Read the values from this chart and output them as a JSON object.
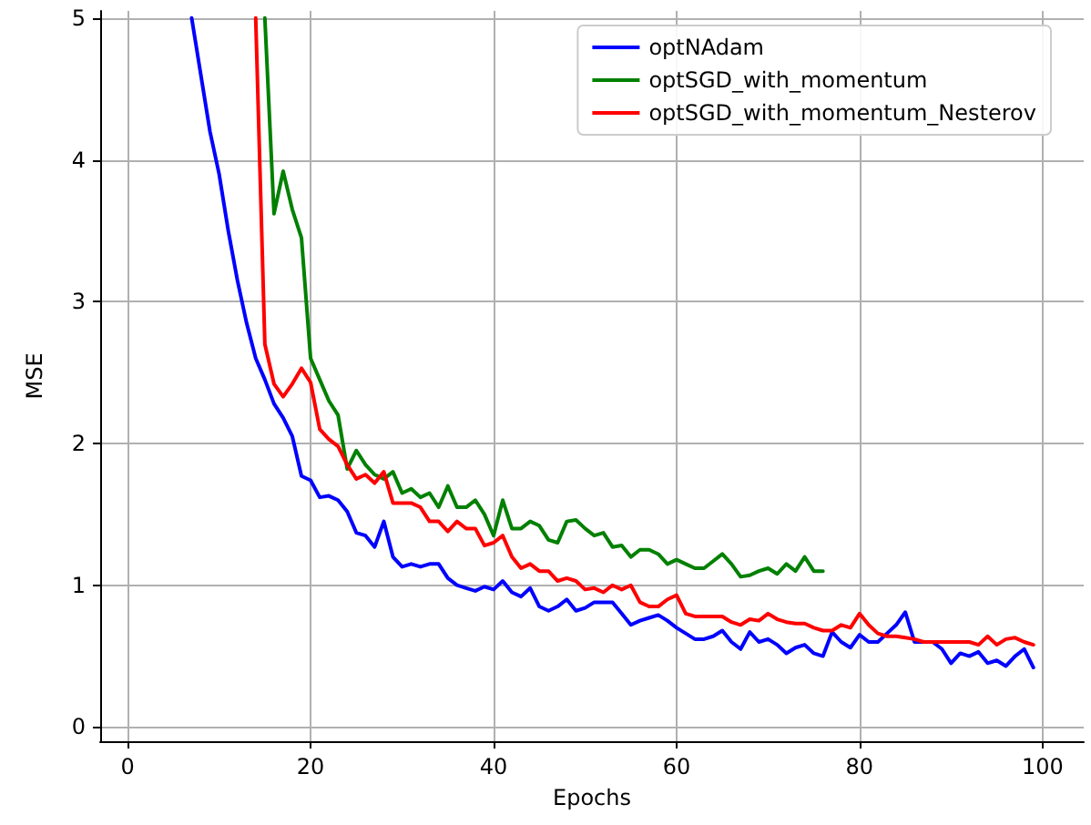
{
  "chart_data": {
    "type": "line",
    "xlabel": "Epochs",
    "ylabel": "MSE",
    "xlim": [
      -3,
      104.5
    ],
    "ylim": [
      -0.1,
      5.05
    ],
    "xticks": [
      0,
      20,
      40,
      60,
      80,
      100
    ],
    "yticks": [
      0,
      1,
      2,
      3,
      4,
      5
    ],
    "grid": true,
    "legend": "top right",
    "marker": "none",
    "line_style": "solid",
    "series": [
      {
        "name": "optNAdam",
        "color": "#0000ff",
        "x": [
          7,
          9,
          10,
          11,
          12,
          13,
          14,
          15,
          16,
          17,
          18,
          19,
          20,
          21,
          22,
          23,
          24,
          25,
          26,
          27,
          28,
          29,
          30,
          31,
          32,
          33,
          34,
          35,
          36,
          37,
          38,
          39,
          40,
          41,
          42,
          43,
          44,
          45,
          46,
          47,
          48,
          49,
          50,
          51,
          52,
          53,
          54,
          55,
          56,
          57,
          58,
          59,
          60,
          61,
          62,
          63,
          64,
          65,
          66,
          67,
          68,
          69,
          70,
          71,
          72,
          73,
          74,
          75,
          76,
          77,
          78,
          79,
          80,
          81,
          82,
          83,
          84,
          85,
          86,
          87,
          88,
          89,
          90,
          91,
          92,
          93,
          94,
          95,
          96,
          97,
          98,
          99
        ],
        "values": [
          5.0,
          4.2,
          3.9,
          3.5,
          3.15,
          2.85,
          2.6,
          2.45,
          2.28,
          2.18,
          2.05,
          1.77,
          1.74,
          1.62,
          1.63,
          1.6,
          1.52,
          1.37,
          1.35,
          1.27,
          1.45,
          1.2,
          1.13,
          1.15,
          1.13,
          1.15,
          1.15,
          1.05,
          1.0,
          0.98,
          0.96,
          0.99,
          0.97,
          1.03,
          0.95,
          0.92,
          0.98,
          0.85,
          0.82,
          0.85,
          0.9,
          0.82,
          0.84,
          0.88,
          0.88,
          0.88,
          0.8,
          0.72,
          0.75,
          0.77,
          0.79,
          0.75,
          0.7,
          0.66,
          0.62,
          0.62,
          0.64,
          0.68,
          0.6,
          0.55,
          0.67,
          0.6,
          0.62,
          0.58,
          0.52,
          0.56,
          0.58,
          0.52,
          0.5,
          0.67,
          0.6,
          0.56,
          0.65,
          0.6,
          0.6,
          0.66,
          0.72,
          0.81,
          0.6,
          0.6,
          0.6,
          0.55,
          0.45,
          0.52,
          0.5,
          0.53,
          0.45,
          0.47,
          0.43,
          0.5,
          0.55,
          0.42
        ]
      },
      {
        "name": "optSGD_with_momentum",
        "color": "#008000",
        "x": [
          15,
          16,
          17,
          18,
          19,
          20,
          21,
          22,
          23,
          24,
          25,
          26,
          27,
          28,
          29,
          30,
          31,
          32,
          33,
          34,
          35,
          36,
          37,
          38,
          39,
          40,
          41,
          42,
          43,
          44,
          45,
          46,
          47,
          48,
          49,
          50,
          51,
          52,
          53,
          54,
          55,
          56,
          57,
          58,
          59,
          60,
          61,
          62,
          63,
          64,
          65,
          66,
          67,
          68,
          69,
          70,
          71,
          72,
          73,
          74,
          75,
          76
        ],
        "values": [
          5.0,
          3.62,
          3.92,
          3.65,
          3.45,
          2.6,
          2.45,
          2.3,
          2.2,
          1.82,
          1.95,
          1.85,
          1.78,
          1.75,
          1.8,
          1.65,
          1.68,
          1.62,
          1.65,
          1.55,
          1.7,
          1.55,
          1.55,
          1.6,
          1.5,
          1.35,
          1.6,
          1.4,
          1.4,
          1.45,
          1.42,
          1.32,
          1.3,
          1.45,
          1.46,
          1.4,
          1.35,
          1.37,
          1.27,
          1.28,
          1.2,
          1.25,
          1.25,
          1.22,
          1.15,
          1.18,
          1.15,
          1.12,
          1.12,
          1.17,
          1.22,
          1.15,
          1.06,
          1.07,
          1.1,
          1.12,
          1.08,
          1.15,
          1.1,
          1.2,
          1.1,
          1.1
        ]
      },
      {
        "name": "optSGD_with_momentum_Nesterov",
        "color": "#ff0000",
        "x": [
          14,
          15,
          16,
          17,
          18,
          19,
          20,
          21,
          22,
          23,
          24,
          25,
          26,
          27,
          28,
          29,
          30,
          31,
          32,
          33,
          34,
          35,
          36,
          37,
          38,
          39,
          40,
          41,
          42,
          43,
          44,
          45,
          46,
          47,
          48,
          49,
          50,
          51,
          52,
          53,
          54,
          55,
          56,
          57,
          58,
          59,
          60,
          61,
          62,
          63,
          64,
          65,
          66,
          67,
          68,
          69,
          70,
          71,
          72,
          73,
          74,
          75,
          76,
          77,
          78,
          79,
          80,
          81,
          82,
          83,
          84,
          85,
          86,
          87,
          88,
          89,
          90,
          91,
          92,
          93,
          94,
          95,
          96,
          97,
          98,
          99
        ],
        "values": [
          5.0,
          2.7,
          2.42,
          2.33,
          2.42,
          2.53,
          2.43,
          2.1,
          2.03,
          1.98,
          1.85,
          1.75,
          1.78,
          1.72,
          1.8,
          1.58,
          1.58,
          1.58,
          1.55,
          1.45,
          1.45,
          1.38,
          1.45,
          1.4,
          1.4,
          1.28,
          1.3,
          1.35,
          1.2,
          1.12,
          1.15,
          1.1,
          1.1,
          1.03,
          1.05,
          1.03,
          0.97,
          0.98,
          0.95,
          1.0,
          0.97,
          1.0,
          0.88,
          0.85,
          0.85,
          0.9,
          0.93,
          0.8,
          0.78,
          0.78,
          0.78,
          0.78,
          0.74,
          0.72,
          0.76,
          0.75,
          0.8,
          0.76,
          0.74,
          0.73,
          0.73,
          0.7,
          0.68,
          0.68,
          0.72,
          0.7,
          0.8,
          0.72,
          0.66,
          0.64,
          0.64,
          0.63,
          0.62,
          0.6,
          0.6,
          0.6,
          0.6,
          0.6,
          0.6,
          0.58,
          0.64,
          0.58,
          0.62,
          0.63,
          0.6,
          0.58
        ]
      }
    ]
  }
}
